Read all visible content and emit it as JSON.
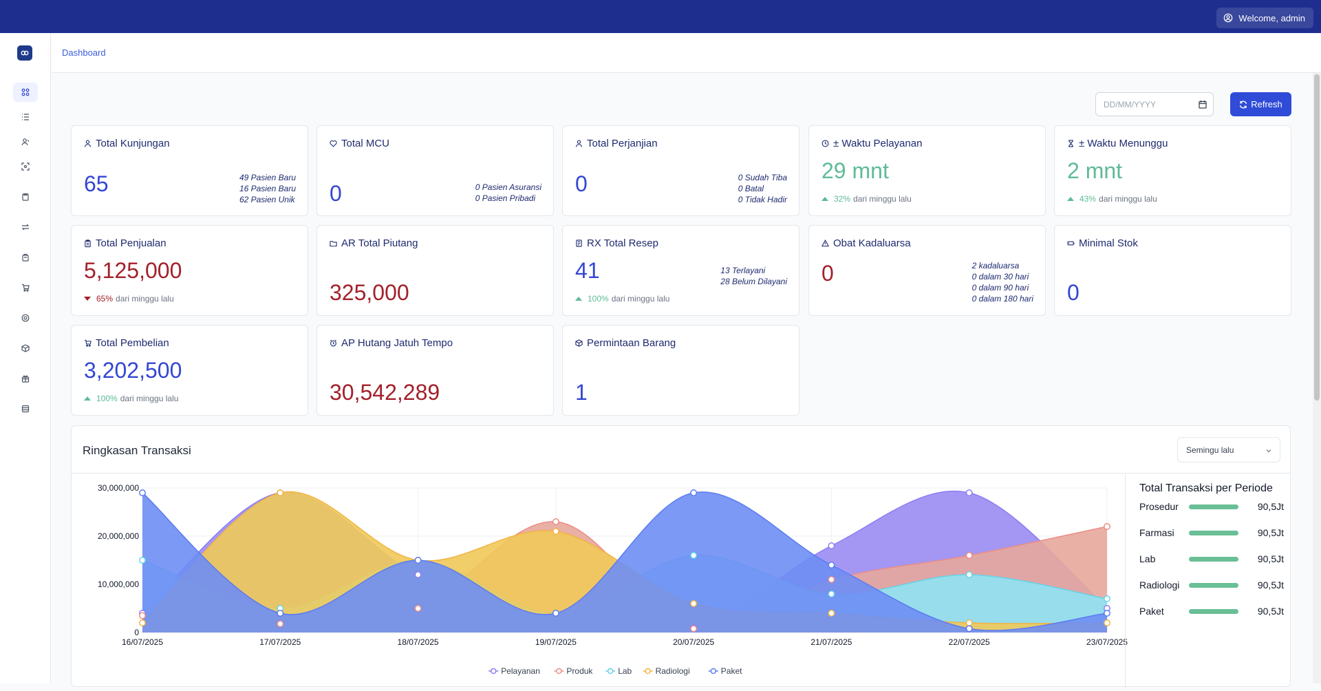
{
  "header": {
    "welcome": "Welcome, admin"
  },
  "breadcrumb": "Dashboard",
  "sidebar_icons": [
    "grid-icon",
    "list-icon",
    "users-icon",
    "scan-icon",
    "clipboard-icon",
    "transfer-icon",
    "box-icon",
    "cart-icon",
    "target-icon",
    "package-icon",
    "gift-icon",
    "database-icon"
  ],
  "toolbar": {
    "date_placeholder": "DD/MM/YYYY",
    "refresh": "Refresh"
  },
  "cards": {
    "kunjungan": {
      "title": "Total Kunjungan",
      "value": "65",
      "details": [
        "49 Pasien Baru",
        "16 Pasien Baru",
        "62 Pasien Unik"
      ]
    },
    "mcu": {
      "title": "Total MCU",
      "value": "0",
      "details": [
        "0 Pasien Asuransi",
        "0 Pasien Pribadi"
      ]
    },
    "perjanjian": {
      "title": "Total Perjanjian",
      "value": "0",
      "details": [
        "0 Sudah Tiba",
        "0 Batal",
        "0 Tidak Hadir"
      ]
    },
    "waktu_pelayanan": {
      "title": "± Waktu Pelayanan",
      "value": "29 mnt",
      "pct": "32%",
      "note": "dari minggu lalu"
    },
    "waktu_menunggu": {
      "title": "± Waktu Menunggu",
      "value": "2 mnt",
      "pct": "43%",
      "note": "dari minggu lalu"
    },
    "penjualan": {
      "title": "Total Penjualan",
      "value": "5,125,000",
      "pct": "65%",
      "note": "dari minggu lalu"
    },
    "piutang": {
      "title": "AR Total Piutang",
      "value": "325,000"
    },
    "resep": {
      "title": "RX Total Resep",
      "value": "41",
      "details": [
        "13 Terlayani",
        "28 Belum Dilayani"
      ],
      "pct": "100%",
      "note": "dari minggu lalu"
    },
    "kadaluarsa": {
      "title": "Obat Kadaluarsa",
      "value": "0",
      "details": [
        "2 kadaluarsa",
        "0 dalam 30 hari",
        "0 dalam 90 hari",
        "0 dalam 180 hari"
      ]
    },
    "minimal_stok": {
      "title": "Minimal Stok",
      "value": "0"
    },
    "pembelian": {
      "title": "Total Pembelian",
      "value": "3,202,500",
      "pct": "100%",
      "note": "dari minggu lalu"
    },
    "hutang": {
      "title": "AP Hutang Jatuh Tempo",
      "value": "30,542,289"
    },
    "permintaan": {
      "title": "Permintaan Barang",
      "value": "1"
    }
  },
  "colors": {
    "up": "#5dbb96",
    "down": "#a3202a",
    "primary": "#2f4bd7",
    "topbar": "#1e2e8f"
  },
  "panel": {
    "title": "Ringkasan Transaksi",
    "period": "Semingu lalu"
  },
  "summary": {
    "title": "Total Transaksi per Periode",
    "rows": [
      {
        "label": "Prosedur",
        "value": "90,5Jt",
        "fill": 1.0
      },
      {
        "label": "Farmasi",
        "value": "90,5Jt",
        "fill": 1.0
      },
      {
        "label": "Lab",
        "value": "90,5Jt",
        "fill": 1.0
      },
      {
        "label": "Radiologi",
        "value": "90,5Jt",
        "fill": 1.0
      },
      {
        "label": "Paket",
        "value": "90,5Jt",
        "fill": 1.0
      }
    ]
  },
  "chart_data": {
    "type": "area",
    "categories": [
      "16/07/2025",
      "17/07/2025",
      "18/07/2025",
      "19/07/2025",
      "20/07/2025",
      "21/07/2025",
      "22/07/2025",
      "23/07/2025"
    ],
    "ylim": [
      0,
      30000000
    ],
    "yticks": [
      "0",
      "10,000,000",
      "20,000,000",
      "30,000,000"
    ],
    "series": [
      {
        "name": "Pelayanan",
        "color": "#8b7cf6",
        "fill": "#9a8cf2",
        "values": [
          4000000,
          29000000,
          12000000,
          4000000,
          1000000,
          18000000,
          29000000,
          5000000
        ]
      },
      {
        "name": "Produk",
        "color": "#ec8c84",
        "fill": "#e7a79c",
        "values": [
          3500000,
          1800000,
          5000000,
          23000000,
          800000,
          11000000,
          16000000,
          22000000
        ]
      },
      {
        "name": "Lab",
        "color": "#63d3e8",
        "fill": "#8fe3f4",
        "values": [
          15000000,
          5000000,
          15000000,
          4000000,
          16000000,
          8000000,
          12000000,
          7000000
        ]
      },
      {
        "name": "Radiologi",
        "color": "#f2b340",
        "fill": "#f0c95a",
        "values": [
          2000000,
          29000000,
          15000000,
          21000000,
          6000000,
          4000000,
          2000000,
          2000000
        ]
      },
      {
        "name": "Paket",
        "color": "#5b7bf0",
        "fill": "#6e8ef4",
        "values": [
          29000000,
          4000000,
          15000000,
          4000000,
          29000000,
          14000000,
          800000,
          4000000
        ]
      }
    ]
  }
}
